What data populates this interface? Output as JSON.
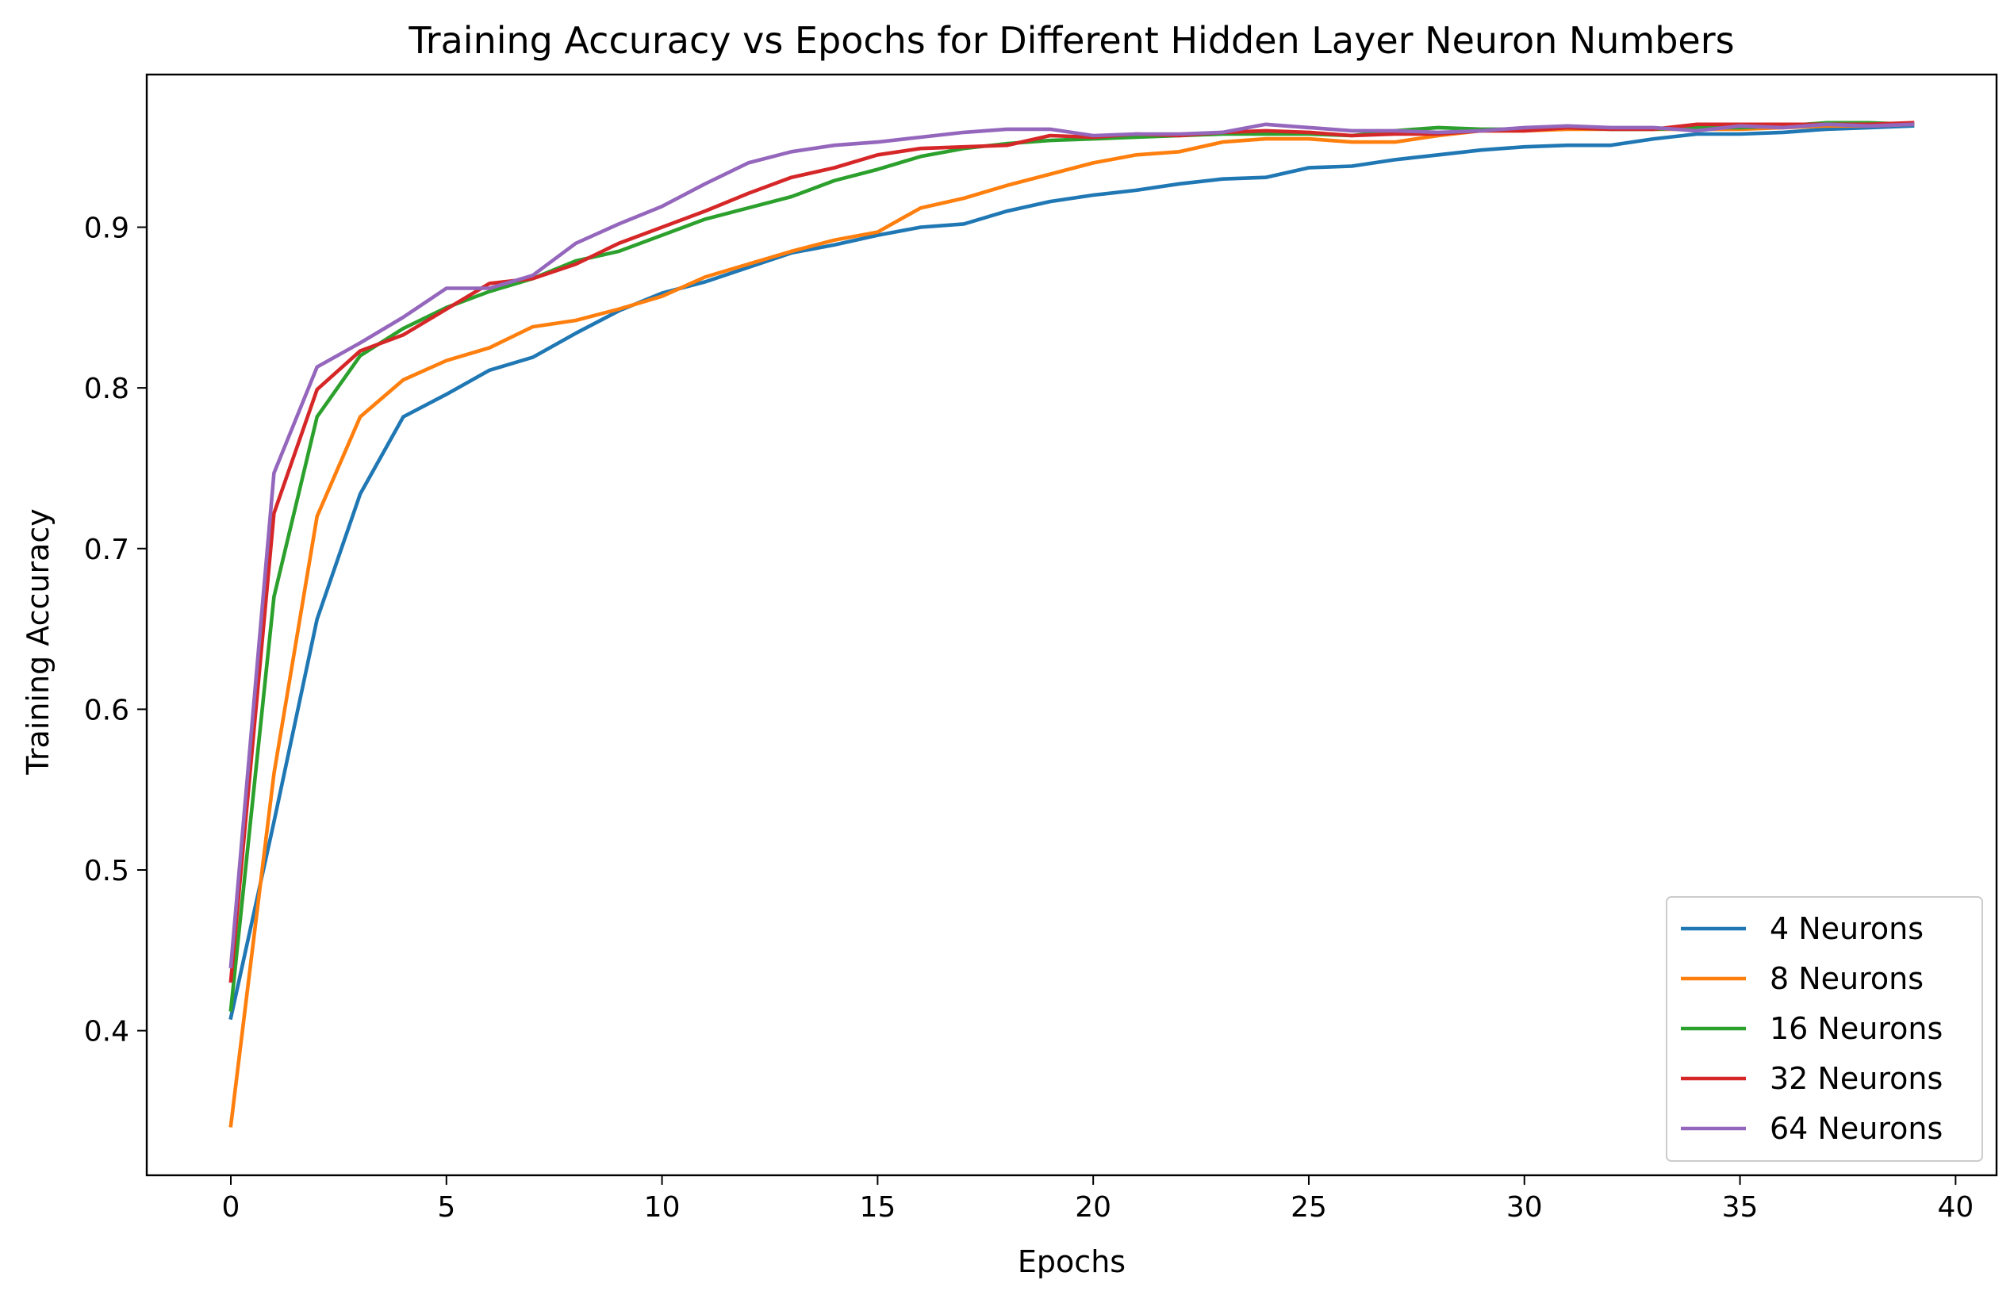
{
  "chart_data": {
    "type": "line",
    "title": "Training Accuracy vs Epochs for Different Hidden Layer Neuron Numbers",
    "xlabel": "Epochs",
    "ylabel": "Training Accuracy",
    "xlim": [
      -1.95,
      40.95
    ],
    "ylim": [
      0.31,
      0.995
    ],
    "xticks": [
      0,
      5,
      10,
      15,
      20,
      25,
      30,
      35,
      40
    ],
    "yticks": [
      0.4,
      0.5,
      0.6,
      0.7,
      0.8,
      0.9
    ],
    "ytick_labels": [
      "0.4",
      "0.5",
      "0.6",
      "0.7",
      "0.8",
      "0.9"
    ],
    "grid": false,
    "legend_position": "lower-right",
    "x": [
      0,
      1,
      2,
      3,
      4,
      5,
      6,
      7,
      8,
      9,
      10,
      11,
      12,
      13,
      14,
      15,
      16,
      17,
      18,
      19,
      20,
      21,
      22,
      23,
      24,
      25,
      26,
      27,
      28,
      29,
      30,
      31,
      32,
      33,
      34,
      35,
      36,
      37,
      38,
      39
    ],
    "series": [
      {
        "name": "4 Neurons",
        "color": "#1f77b4",
        "values": [
          0.408,
          0.53,
          0.656,
          0.734,
          0.782,
          0.796,
          0.811,
          0.819,
          0.834,
          0.848,
          0.859,
          0.866,
          0.875,
          0.884,
          0.889,
          0.895,
          0.9,
          0.902,
          0.91,
          0.916,
          0.92,
          0.923,
          0.927,
          0.93,
          0.931,
          0.937,
          0.938,
          0.942,
          0.945,
          0.948,
          0.95,
          0.951,
          0.951,
          0.955,
          0.958,
          0.958,
          0.959,
          0.961,
          0.962,
          0.963
        ]
      },
      {
        "name": "8 Neurons",
        "color": "#ff7f0e",
        "values": [
          0.341,
          0.56,
          0.72,
          0.782,
          0.805,
          0.817,
          0.825,
          0.838,
          0.842,
          0.849,
          0.857,
          0.869,
          0.877,
          0.885,
          0.892,
          0.897,
          0.912,
          0.918,
          0.926,
          0.933,
          0.94,
          0.945,
          0.947,
          0.953,
          0.955,
          0.955,
          0.953,
          0.953,
          0.957,
          0.96,
          0.96,
          0.961,
          0.961,
          0.961,
          0.961,
          0.961,
          0.962,
          0.963,
          0.963,
          0.964
        ]
      },
      {
        "name": "16 Neurons",
        "color": "#2ca02c",
        "values": [
          0.413,
          0.67,
          0.782,
          0.82,
          0.837,
          0.85,
          0.86,
          0.868,
          0.879,
          0.885,
          0.895,
          0.905,
          0.912,
          0.919,
          0.929,
          0.936,
          0.944,
          0.949,
          0.952,
          0.954,
          0.955,
          0.956,
          0.957,
          0.958,
          0.958,
          0.958,
          0.957,
          0.96,
          0.962,
          0.961,
          0.961,
          0.962,
          0.961,
          0.961,
          0.962,
          0.962,
          0.963,
          0.965,
          0.965,
          0.964
        ]
      },
      {
        "name": "32 Neurons",
        "color": "#d62728",
        "values": [
          0.431,
          0.722,
          0.799,
          0.823,
          0.833,
          0.849,
          0.865,
          0.868,
          0.877,
          0.89,
          0.9,
          0.91,
          0.921,
          0.931,
          0.937,
          0.945,
          0.949,
          0.95,
          0.951,
          0.957,
          0.956,
          0.958,
          0.957,
          0.959,
          0.96,
          0.959,
          0.957,
          0.958,
          0.958,
          0.96,
          0.96,
          0.962,
          0.961,
          0.961,
          0.964,
          0.964,
          0.964,
          0.964,
          0.964,
          0.965
        ]
      },
      {
        "name": "64 Neurons",
        "color": "#9467bd",
        "values": [
          0.44,
          0.747,
          0.813,
          0.828,
          0.844,
          0.862,
          0.862,
          0.87,
          0.89,
          0.902,
          0.913,
          0.927,
          0.94,
          0.947,
          0.951,
          0.953,
          0.956,
          0.959,
          0.961,
          0.961,
          0.957,
          0.958,
          0.958,
          0.959,
          0.964,
          0.962,
          0.96,
          0.96,
          0.959,
          0.96,
          0.962,
          0.963,
          0.962,
          0.962,
          0.96,
          0.963,
          0.962,
          0.964,
          0.963,
          0.964
        ]
      }
    ]
  }
}
